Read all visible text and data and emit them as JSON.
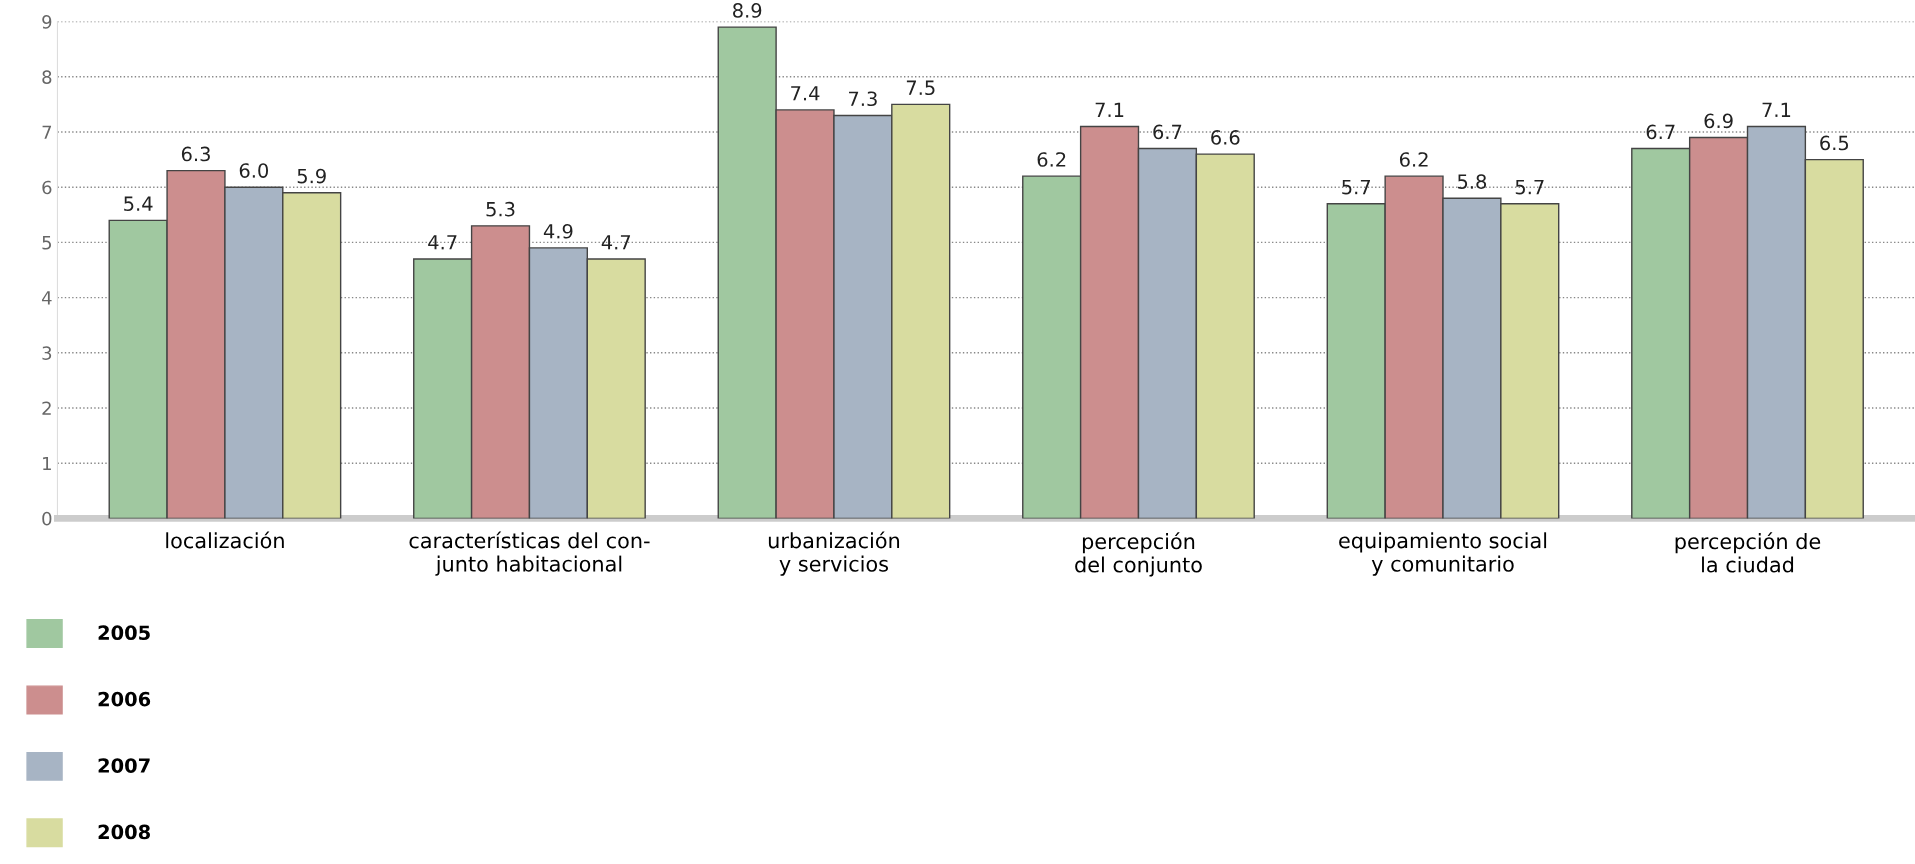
{
  "chart_data": {
    "type": "bar",
    "categories": [
      "localización",
      "características del con-\njunto habitacional",
      "urbanización\ny servicios",
      "percepción\ndel conjunto",
      "equipamiento social\ny comunitario",
      "percepción de\nla ciudad"
    ],
    "series": [
      {
        "name": "2005",
        "color": "#a0c8a0",
        "values": [
          5.4,
          4.7,
          8.9,
          6.2,
          5.7,
          6.7
        ]
      },
      {
        "name": "2006",
        "color": "#cc8e8e",
        "values": [
          6.3,
          5.3,
          7.4,
          7.1,
          6.2,
          6.9
        ]
      },
      {
        "name": "2007",
        "color": "#a7b4c4",
        "values": [
          6.0,
          4.9,
          7.3,
          6.7,
          5.8,
          7.1
        ],
        "value_labels": [
          "6.0",
          "4.9",
          "7.3",
          "6.7",
          "5.8",
          "7.1"
        ]
      },
      {
        "name": "2008",
        "color": "#d8dca0",
        "values": [
          5.9,
          4.7,
          7.5,
          6.6,
          5.7,
          6.5
        ]
      }
    ],
    "ylim": [
      0,
      9
    ],
    "yticks": [
      0,
      1,
      2,
      3,
      4,
      5,
      6,
      7,
      8,
      9
    ],
    "grid": "y",
    "legend": "bottom left",
    "data_labels": true
  }
}
